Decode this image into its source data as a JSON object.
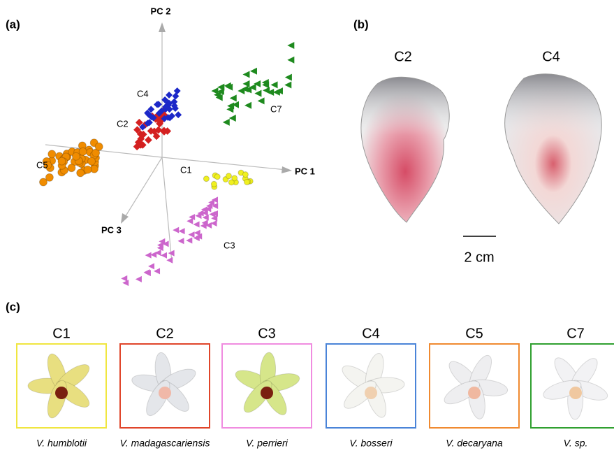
{
  "panel_a": {
    "label": "(a)",
    "axes": {
      "pc2": "PC 2",
      "pc1": "PC 1",
      "pc3": "PC 3"
    },
    "clusters": {
      "c4": "C4",
      "c2": "C2",
      "c7": "C7",
      "c5": "C5",
      "c1": "C1",
      "c3": "C3"
    }
  },
  "panel_b": {
    "label": "(b)",
    "petals": [
      "C2",
      "C4"
    ],
    "scale": "2 cm"
  },
  "panel_c": {
    "label": "(c)",
    "flowers": [
      {
        "cluster": "C1",
        "species": "V. humblotii"
      },
      {
        "cluster": "C2",
        "species": "V. madagascariensis"
      },
      {
        "cluster": "C3",
        "species": "V. perrieri"
      },
      {
        "cluster": "C4",
        "species": "V. bosseri"
      },
      {
        "cluster": "C5",
        "species": "V. decaryana"
      },
      {
        "cluster": "C7",
        "species": "V. sp."
      }
    ]
  }
}
